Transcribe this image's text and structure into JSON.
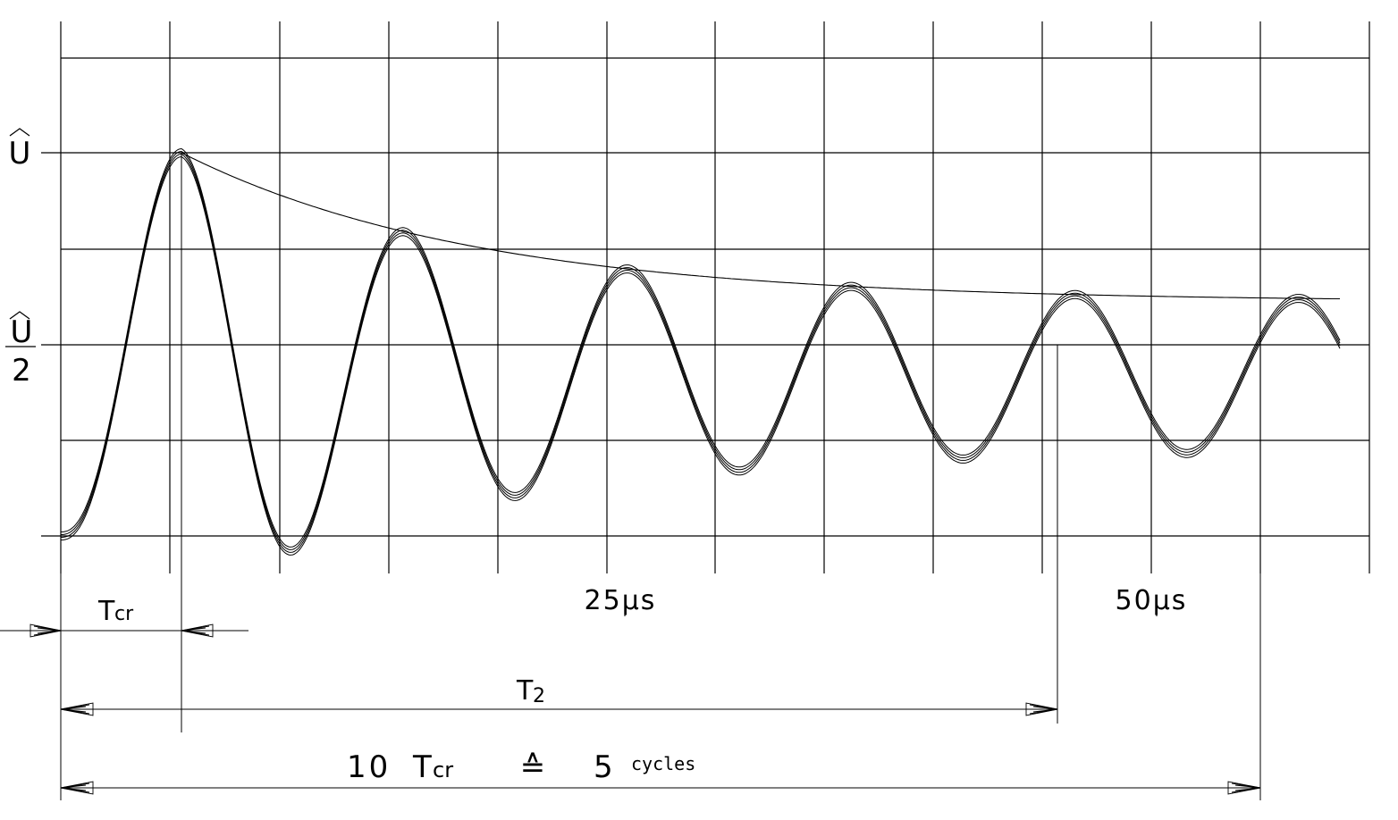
{
  "labels": {
    "u_peak": "U",
    "u_half_num": "U",
    "u_half_den": "2",
    "time_25": "25μs",
    "time_50": "50μs",
    "tcr_T": "T",
    "tcr_sub": "cr",
    "t2_T": "T",
    "t2_sub": "2",
    "bottom_ten": "10",
    "bottom_T": "T",
    "bottom_sub": "cr",
    "bottom_equiv": "≙",
    "bottom_five": "5",
    "bottom_cycles": "cycles"
  }
}
